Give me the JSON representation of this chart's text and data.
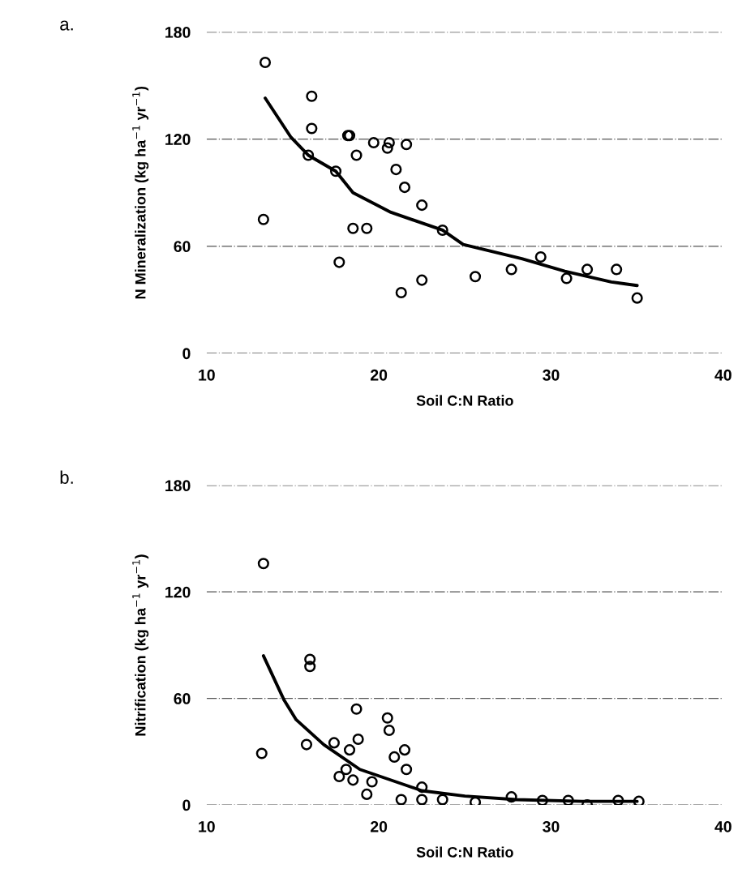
{
  "chart_data": [
    {
      "type": "scatter",
      "xlabel": "Soil C:N Ratio",
      "ylabel": "N Mineralization (kg ha$^{−1}$ yr$^{−1}$)",
      "annotations": [
        "a."
      ],
      "xlim": [
        10,
        40
      ],
      "xticks": [
        10,
        20,
        30,
        40
      ],
      "ylim": [
        0,
        180
      ],
      "yticks": [
        0,
        60,
        120,
        180
      ],
      "grid": "y",
      "marker": "circle",
      "series": [
        {
          "color": "#000000",
          "x": [
            13.4,
            13.3,
            16.1,
            16.1,
            15.9,
            17.5,
            17.7,
            18.2,
            18.3,
            18.7,
            18.5,
            19.3,
            19.7,
            20.6,
            20.5,
            21.6,
            21.0,
            21.5,
            22.5,
            23.7,
            21.3,
            22.5,
            25.6,
            27.7,
            29.4,
            30.9,
            32.1,
            33.8,
            35.0
          ],
          "values": [
            163,
            75,
            144,
            126,
            111,
            102,
            51,
            122,
            122,
            111,
            70,
            70,
            118,
            118,
            115,
            117,
            103,
            93,
            83,
            69,
            34,
            41,
            43,
            47,
            54,
            42,
            47,
            47,
            31
          ]
        },
        {
          "type": "line",
          "color": "#000000",
          "marker": "none",
          "line_style": "solid",
          "x": [
            13.4,
            14.9,
            15.9,
            17.5,
            18.5,
            20.7,
            23.7,
            24.9,
            28.3,
            30.8,
            33.5,
            35.0
          ],
          "values": [
            143,
            121,
            111,
            102,
            90,
            79,
            69,
            61,
            53,
            46,
            40,
            38
          ]
        }
      ]
    },
    {
      "type": "scatter",
      "xlabel": "Soil C:N Ratio",
      "ylabel": "Nitrification (kg ha$^{−1}$ yr$^{−1}$)",
      "annotations": [
        "b."
      ],
      "xlim": [
        10,
        40
      ],
      "xticks": [
        10,
        20,
        30,
        40
      ],
      "ylim": [
        0,
        180
      ],
      "yticks": [
        0,
        60,
        120,
        180
      ],
      "grid": "y",
      "marker": "circle",
      "series": [
        {
          "color": "#000000",
          "x": [
            13.3,
            13.2,
            16.0,
            16.0,
            15.8,
            17.4,
            18.3,
            18.7,
            18.8,
            20.5,
            20.6,
            20.9,
            21.5,
            21.6,
            18.1,
            17.7,
            18.5,
            19.6,
            19.3,
            21.3,
            22.5,
            22.5,
            23.7,
            25.6,
            27.7,
            29.5,
            31.0,
            32.1,
            33.9,
            35.1
          ],
          "values": [
            136,
            29,
            82,
            78,
            34,
            35,
            31,
            54,
            37,
            49,
            42,
            27,
            31,
            20,
            20,
            16,
            14,
            13,
            6,
            3,
            10,
            3,
            3,
            1.5,
            4.5,
            2.5,
            2.5,
            0,
            2.5,
            2
          ]
        },
        {
          "type": "line",
          "color": "#000000",
          "marker": "none",
          "line_style": "solid",
          "x": [
            13.3,
            14.5,
            15.2,
            16.8,
            18.9,
            21.3,
            22.5,
            25.0,
            28.0,
            31.8,
            35.0
          ],
          "values": [
            84,
            59,
            48,
            34,
            20,
            12,
            8,
            5,
            3,
            2,
            2
          ]
        }
      ]
    }
  ]
}
